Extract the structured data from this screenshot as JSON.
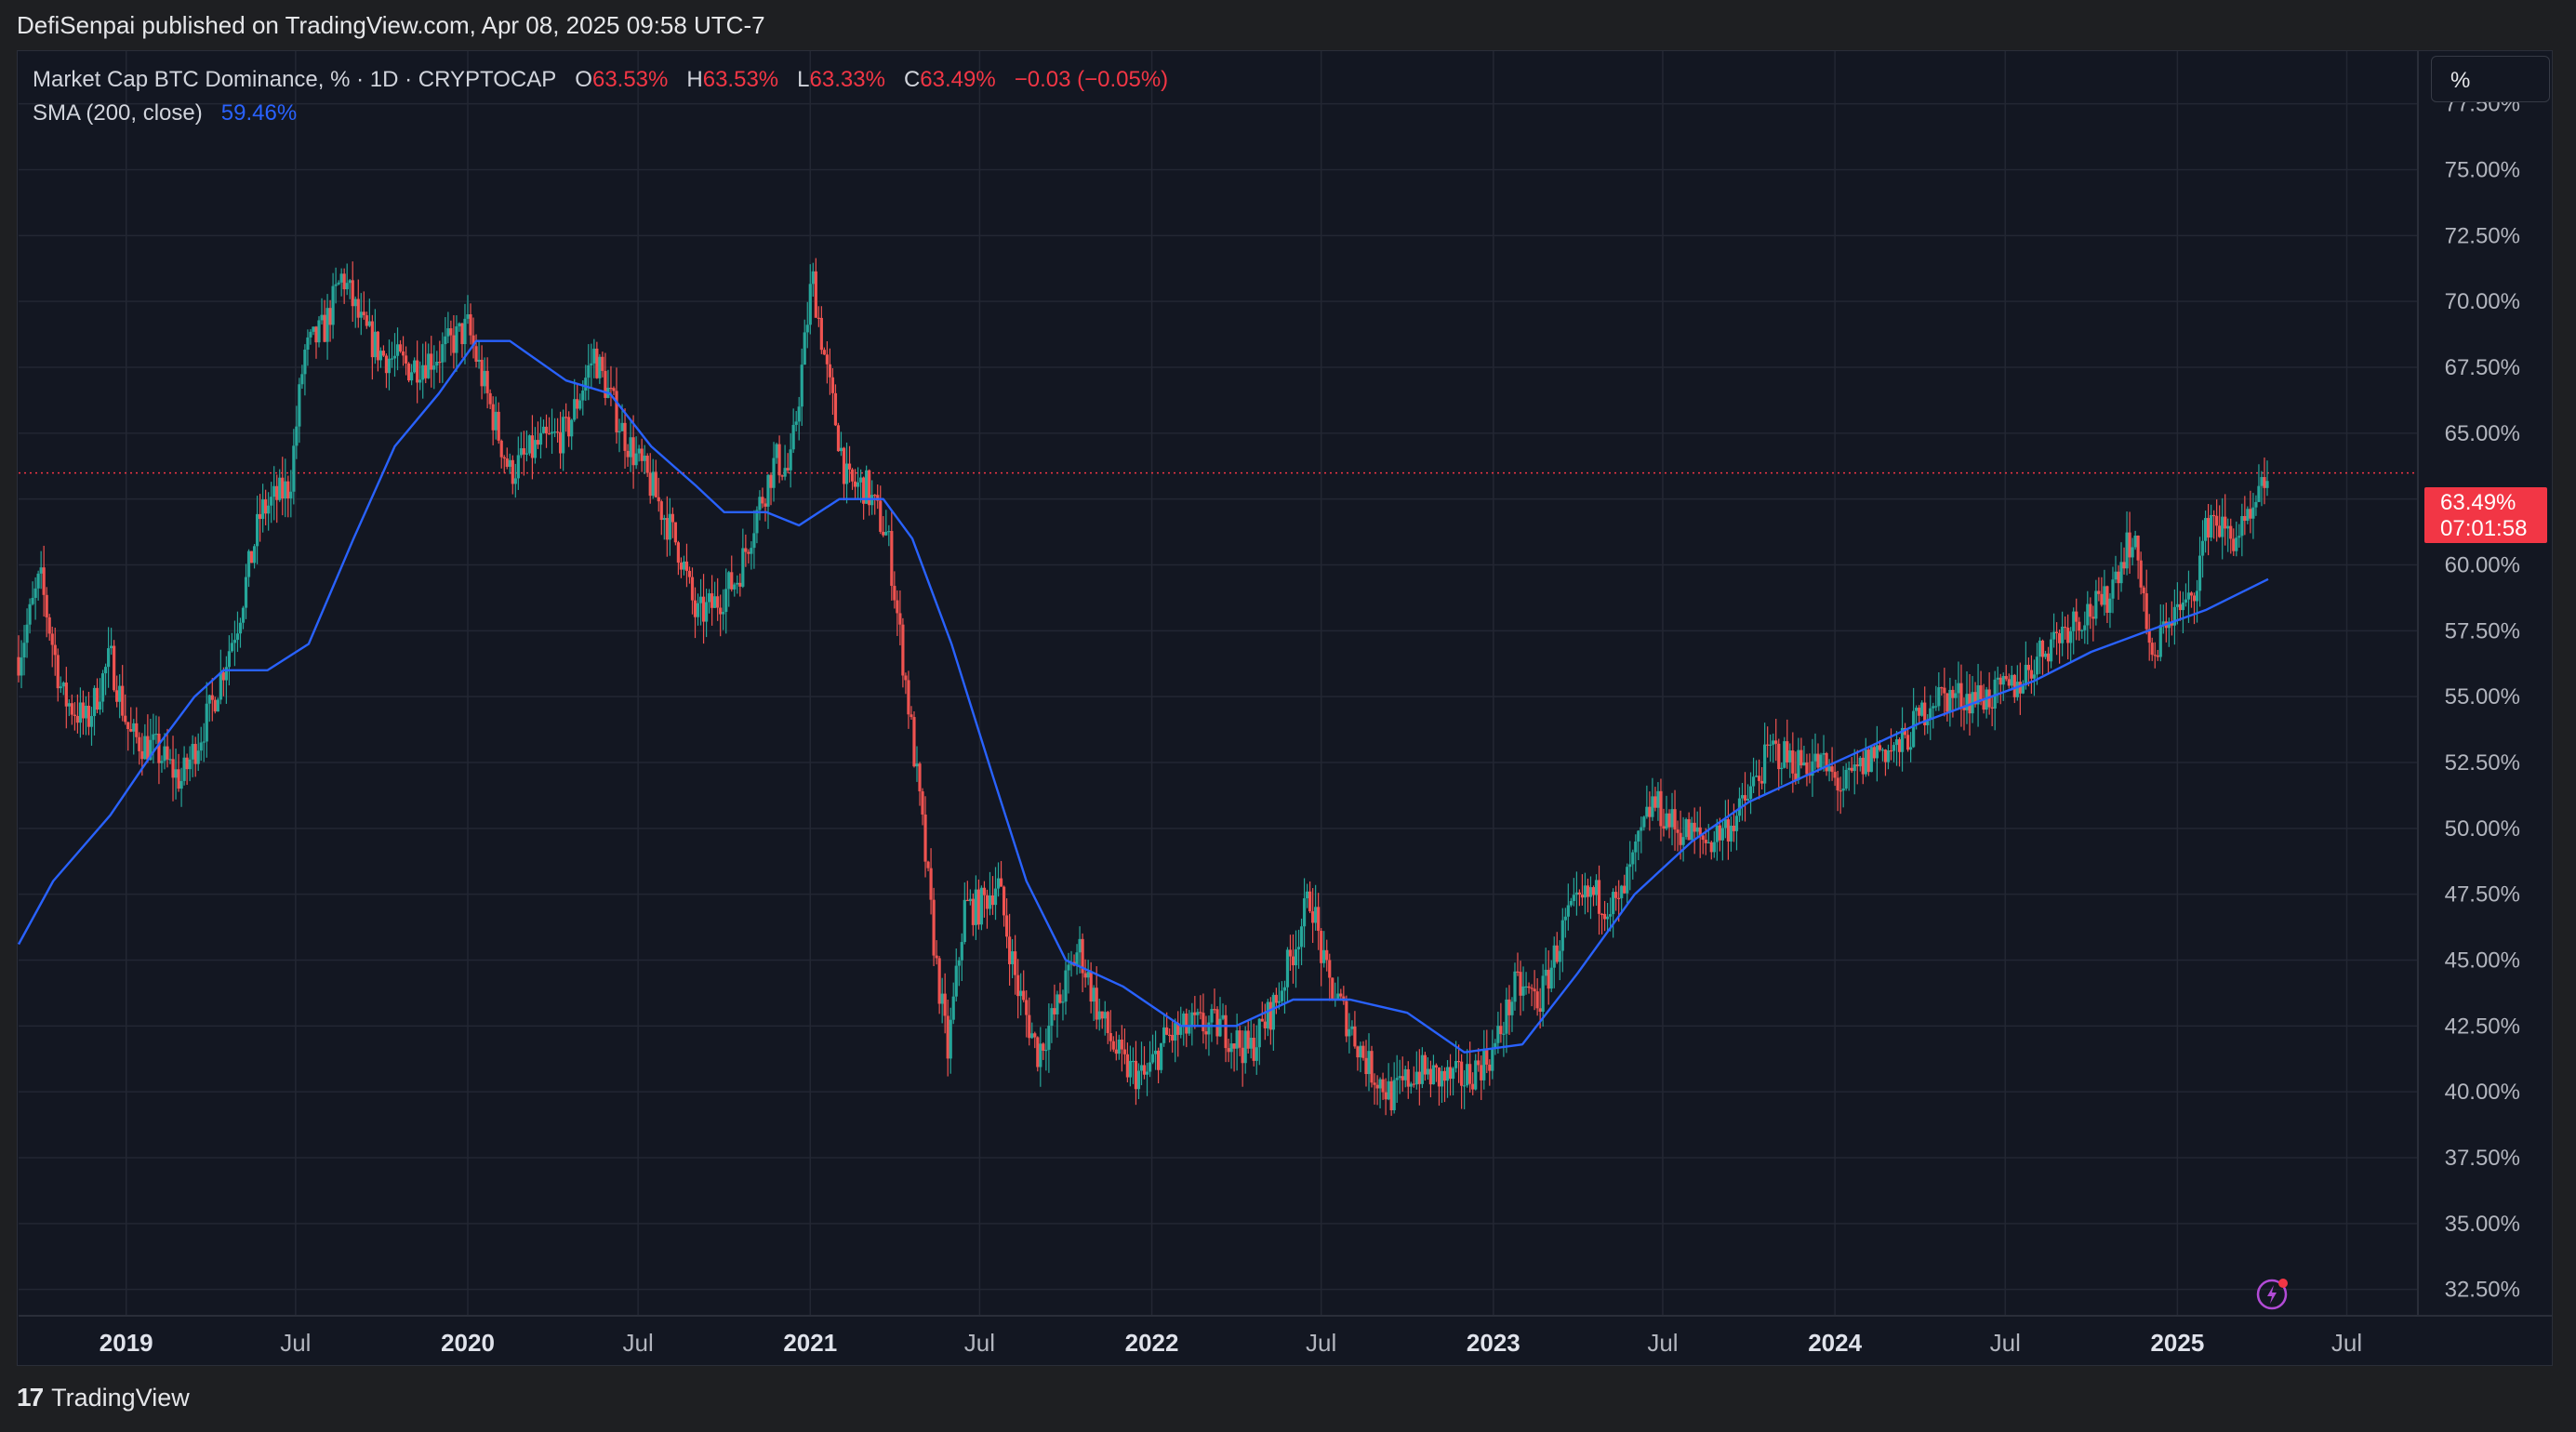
{
  "header": {
    "published_text": "DefiSenpai published on TradingView.com, Apr 08, 2025 09:58 UTC-7"
  },
  "legend": {
    "symbol": "Market Cap BTC Dominance, % · 1D · CRYPTOCAP",
    "open_label": "O",
    "open": "63.53%",
    "high_label": "H",
    "high": "63.53%",
    "low_label": "L",
    "low": "63.33%",
    "close_label": "C",
    "close": "63.49%",
    "change": "−0.03 (−0.05%)",
    "sma_label": "SMA (200, close)",
    "sma_value": "59.46%"
  },
  "unit_button": "%",
  "price_tag": {
    "value": "63.49%",
    "countdown": "07:01:58"
  },
  "footer": {
    "brand": "TradingView",
    "logo_mark": "17"
  },
  "colors": {
    "background": "#131722",
    "up": "#26a69a",
    "down": "#ef5350",
    "sma": "#2962ff",
    "last_price": "#f23645"
  },
  "chart_data": {
    "type": "candlestick",
    "title": "Market Cap BTC Dominance, % · 1D · CRYPTOCAP",
    "ylim": [
      31.5,
      79.5
    ],
    "y_ticks": [
      "32.50%",
      "35.00%",
      "37.50%",
      "40.00%",
      "42.50%",
      "45.00%",
      "47.50%",
      "50.00%",
      "52.50%",
      "55.00%",
      "57.50%",
      "60.00%",
      "62.50%",
      "65.00%",
      "67.50%",
      "70.00%",
      "72.50%",
      "75.00%",
      "77.50%"
    ],
    "y_tick_values": [
      32.5,
      35,
      37.5,
      40,
      42.5,
      45,
      47.5,
      50,
      52.5,
      55,
      57.5,
      60,
      62.5,
      65,
      67.5,
      70,
      72.5,
      75,
      77.5
    ],
    "x_range": [
      "2018-09-08",
      "2025-09-15"
    ],
    "x_ticks": [
      {
        "label": "2019",
        "date": "2019-01-01",
        "bold": true
      },
      {
        "label": "Jul",
        "date": "2019-07-01",
        "bold": false
      },
      {
        "label": "2020",
        "date": "2020-01-01",
        "bold": true
      },
      {
        "label": "Jul",
        "date": "2020-07-01",
        "bold": false
      },
      {
        "label": "2021",
        "date": "2021-01-01",
        "bold": true
      },
      {
        "label": "Jul",
        "date": "2021-07-01",
        "bold": false
      },
      {
        "label": "2022",
        "date": "2022-01-01",
        "bold": true
      },
      {
        "label": "Jul",
        "date": "2022-07-01",
        "bold": false
      },
      {
        "label": "2023",
        "date": "2023-01-01",
        "bold": true
      },
      {
        "label": "Jul",
        "date": "2023-07-01",
        "bold": false
      },
      {
        "label": "2024",
        "date": "2024-01-01",
        "bold": true
      },
      {
        "label": "Jul",
        "date": "2024-07-01",
        "bold": false
      },
      {
        "label": "2025",
        "date": "2025-01-01",
        "bold": true
      },
      {
        "label": "Jul",
        "date": "2025-07-01",
        "bold": false
      }
    ],
    "last_price": 63.49,
    "price_series": {
      "name": "Market Cap BTC Dominance",
      "points": [
        [
          "2018-09-08",
          56.5
        ],
        [
          "2018-10-01",
          59.5
        ],
        [
          "2018-10-25",
          55
        ],
        [
          "2018-11-20",
          54
        ],
        [
          "2018-12-15",
          56.5
        ],
        [
          "2019-01-05",
          53.5
        ],
        [
          "2019-02-01",
          53
        ],
        [
          "2019-03-01",
          51.8
        ],
        [
          "2019-04-01",
          54.5
        ],
        [
          "2019-05-01",
          58
        ],
        [
          "2019-05-25",
          62
        ],
        [
          "2019-06-25",
          63
        ],
        [
          "2019-07-10",
          68
        ],
        [
          "2019-08-01",
          69
        ],
        [
          "2019-08-20",
          71
        ],
        [
          "2019-09-10",
          69
        ],
        [
          "2019-10-01",
          68
        ],
        [
          "2019-11-01",
          67.5
        ],
        [
          "2019-12-01",
          68
        ],
        [
          "2020-01-01",
          69
        ],
        [
          "2020-01-25",
          66
        ],
        [
          "2020-02-15",
          63.5
        ],
        [
          "2020-03-15",
          64.5
        ],
        [
          "2020-04-15",
          65
        ],
        [
          "2020-05-15",
          68
        ],
        [
          "2020-06-15",
          65
        ],
        [
          "2020-07-15",
          63
        ],
        [
          "2020-08-15",
          60.5
        ],
        [
          "2020-09-01",
          58
        ],
        [
          "2020-09-20",
          58.5
        ],
        [
          "2020-10-15",
          59.5
        ],
        [
          "2020-11-05",
          62
        ],
        [
          "2020-11-25",
          64
        ],
        [
          "2020-12-10",
          63.5
        ],
        [
          "2020-12-25",
          68
        ],
        [
          "2021-01-03",
          71
        ],
        [
          "2021-01-20",
          67
        ],
        [
          "2021-02-10",
          63
        ],
        [
          "2021-03-01",
          63
        ],
        [
          "2021-03-25",
          61
        ],
        [
          "2021-04-15",
          55
        ],
        [
          "2021-05-01",
          50
        ],
        [
          "2021-05-15",
          45
        ],
        [
          "2021-05-28",
          41.5
        ],
        [
          "2021-06-15",
          47
        ],
        [
          "2021-07-01",
          47
        ],
        [
          "2021-07-20",
          48
        ],
        [
          "2021-08-10",
          44
        ],
        [
          "2021-09-01",
          41.5
        ],
        [
          "2021-09-20",
          43
        ],
        [
          "2021-10-15",
          45.5
        ],
        [
          "2021-11-05",
          43
        ],
        [
          "2021-12-01",
          41
        ],
        [
          "2021-12-25",
          40.5
        ],
        [
          "2022-01-15",
          42
        ],
        [
          "2022-02-15",
          42.5
        ],
        [
          "2022-03-15",
          42.5
        ],
        [
          "2022-04-15",
          41.5
        ],
        [
          "2022-05-15",
          43.5
        ],
        [
          "2022-06-20",
          47.5
        ],
        [
          "2022-07-05",
          44.5
        ],
        [
          "2022-07-25",
          43
        ],
        [
          "2022-08-20",
          41
        ],
        [
          "2022-09-15",
          39.8
        ],
        [
          "2022-10-10",
          40.8
        ],
        [
          "2022-11-05",
          40.5
        ],
        [
          "2022-12-01",
          40.5
        ],
        [
          "2023-01-01",
          41.5
        ],
        [
          "2023-01-25",
          44
        ],
        [
          "2023-02-20",
          43.5
        ],
        [
          "2023-03-20",
          46.5
        ],
        [
          "2023-04-15",
          47.5
        ],
        [
          "2023-05-15",
          47
        ],
        [
          "2023-06-20",
          51
        ],
        [
          "2023-07-15",
          50
        ],
        [
          "2023-08-20",
          49.5
        ],
        [
          "2023-09-20",
          50.5
        ],
        [
          "2023-10-25",
          53
        ],
        [
          "2023-11-20",
          52.5
        ],
        [
          "2023-12-15",
          52.5
        ],
        [
          "2024-01-10",
          51.5
        ],
        [
          "2024-02-15",
          53
        ],
        [
          "2024-03-10",
          53
        ],
        [
          "2024-04-15",
          55
        ],
        [
          "2024-05-15",
          55
        ],
        [
          "2024-06-20",
          55
        ],
        [
          "2024-07-15",
          55.5
        ],
        [
          "2024-08-15",
          57
        ],
        [
          "2024-09-15",
          58
        ],
        [
          "2024-10-15",
          58.5
        ],
        [
          "2024-11-10",
          61
        ],
        [
          "2024-11-22",
          60
        ],
        [
          "2024-12-05",
          56
        ],
        [
          "2024-12-20",
          58
        ],
        [
          "2025-01-15",
          58.5
        ],
        [
          "2025-02-05",
          62
        ],
        [
          "2025-02-25",
          61
        ],
        [
          "2025-03-20",
          61.5
        ],
        [
          "2025-04-08",
          63.49
        ]
      ]
    },
    "sma_series": {
      "name": "SMA (200, close)",
      "points": [
        [
          "2018-09-08",
          45.6
        ],
        [
          "2018-10-15",
          48
        ],
        [
          "2018-12-15",
          50.5
        ],
        [
          "2019-02-01",
          53
        ],
        [
          "2019-03-15",
          55
        ],
        [
          "2019-04-15",
          56
        ],
        [
          "2019-06-01",
          56
        ],
        [
          "2019-07-15",
          57
        ],
        [
          "2019-09-01",
          61
        ],
        [
          "2019-10-15",
          64.5
        ],
        [
          "2019-12-01",
          66.5
        ],
        [
          "2020-01-10",
          68.5
        ],
        [
          "2020-02-15",
          68.5
        ],
        [
          "2020-04-15",
          67
        ],
        [
          "2020-06-01",
          66.5
        ],
        [
          "2020-07-15",
          64.5
        ],
        [
          "2020-09-01",
          63
        ],
        [
          "2020-10-01",
          62
        ],
        [
          "2020-11-15",
          62
        ],
        [
          "2020-12-20",
          61.5
        ],
        [
          "2021-02-01",
          62.5
        ],
        [
          "2021-03-20",
          62.5
        ],
        [
          "2021-04-20",
          61
        ],
        [
          "2021-06-01",
          57
        ],
        [
          "2021-07-15",
          52
        ],
        [
          "2021-08-20",
          48
        ],
        [
          "2021-10-01",
          45
        ],
        [
          "2021-12-01",
          44
        ],
        [
          "2022-02-01",
          42.5
        ],
        [
          "2022-04-01",
          42.5
        ],
        [
          "2022-06-01",
          43.5
        ],
        [
          "2022-08-01",
          43.5
        ],
        [
          "2022-10-01",
          43
        ],
        [
          "2022-12-01",
          41.5
        ],
        [
          "2023-02-01",
          41.8
        ],
        [
          "2023-04-01",
          44.5
        ],
        [
          "2023-06-01",
          47.5
        ],
        [
          "2023-08-01",
          49.5
        ],
        [
          "2023-10-01",
          51
        ],
        [
          "2023-12-01",
          52
        ],
        [
          "2024-02-01",
          53
        ],
        [
          "2024-04-01",
          54
        ],
        [
          "2024-06-01",
          54.8
        ],
        [
          "2024-08-01",
          55.6
        ],
        [
          "2024-10-01",
          56.7
        ],
        [
          "2024-12-01",
          57.5
        ],
        [
          "2025-02-01",
          58.3
        ],
        [
          "2025-04-08",
          59.46
        ]
      ]
    }
  }
}
